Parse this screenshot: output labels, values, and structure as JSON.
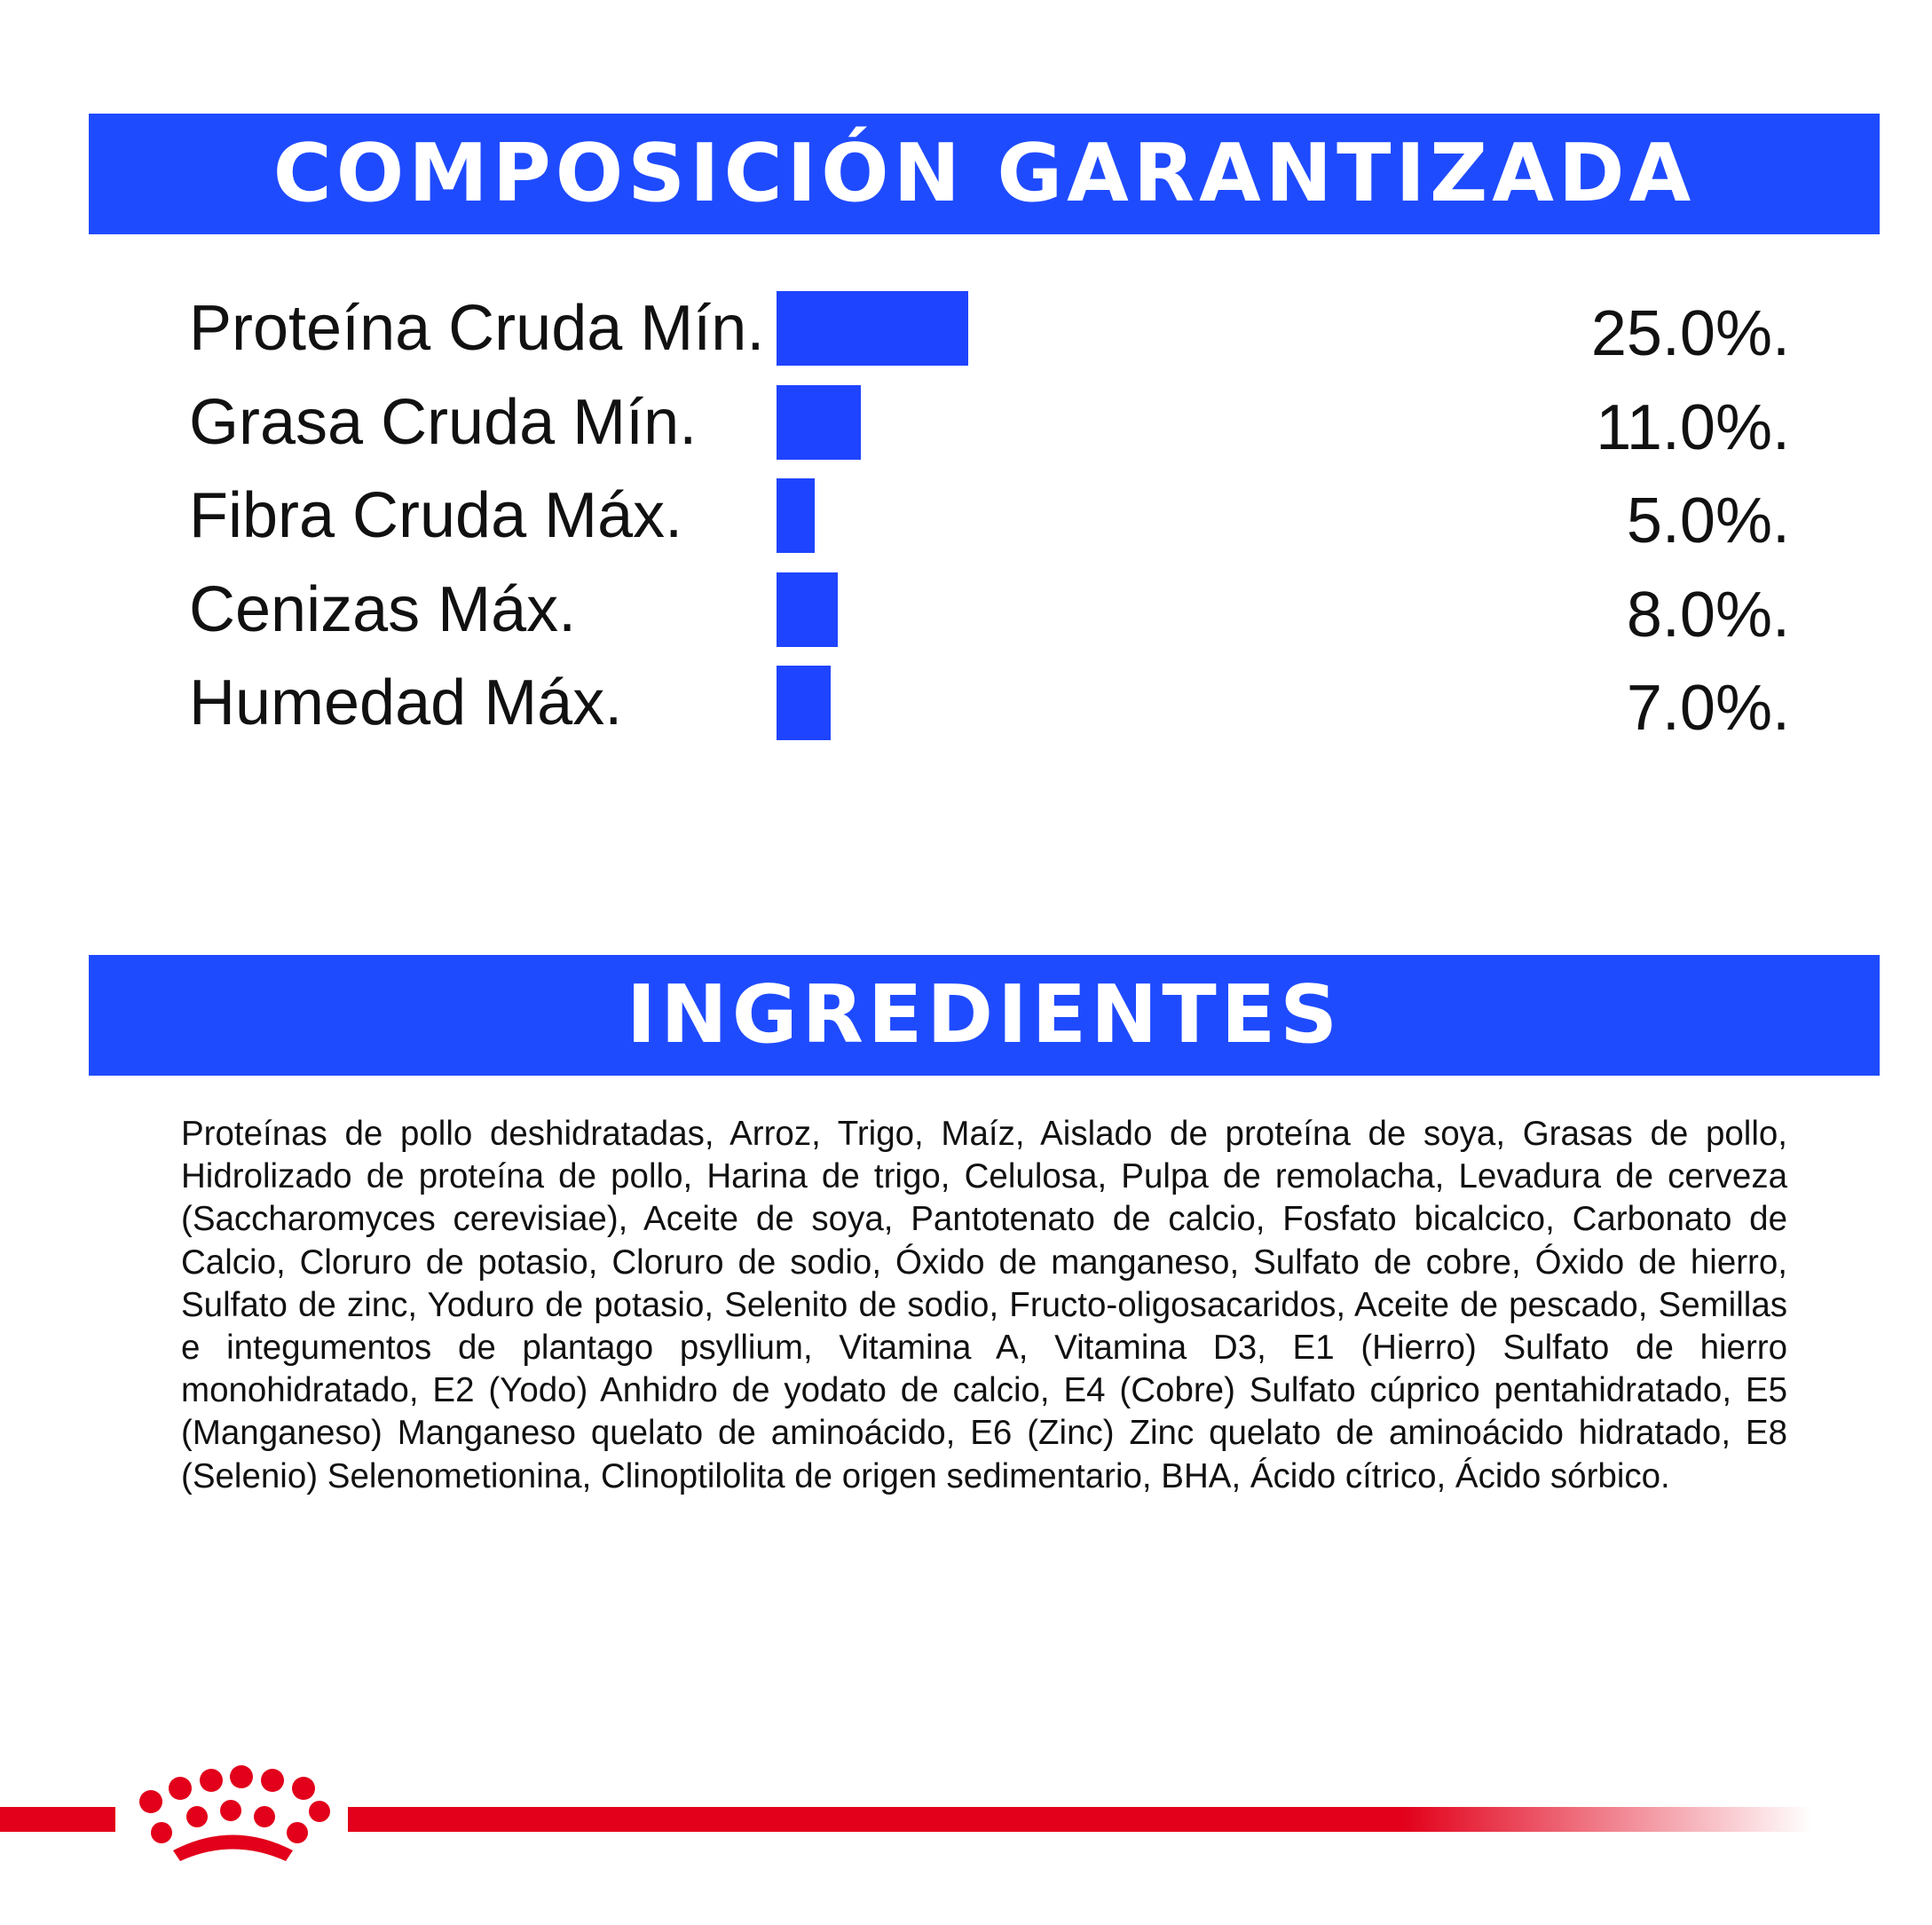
{
  "colors": {
    "banner_blue": "#1f4bff",
    "bar_blue": "#1f44ff",
    "brand_red": "#e2001a"
  },
  "composition": {
    "title": "COMPOSICIÓN GARANTIZADA",
    "rows": [
      {
        "label": "Proteína Cruda Mín.",
        "value": "25.0%.",
        "percent": 25.0
      },
      {
        "label": "Grasa Cruda Mín.",
        "value": "11.0%.",
        "percent": 11.0
      },
      {
        "label": "Fibra Cruda Máx.",
        "value": "5.0%.",
        "percent": 5.0
      },
      {
        "label": "Cenizas Máx.",
        "value": "8.0%.",
        "percent": 8.0
      },
      {
        "label": "Humedad Máx.",
        "value": "7.0%.",
        "percent": 7.0
      }
    ]
  },
  "ingredients": {
    "title": "INGREDIENTES",
    "text": "Proteínas de pollo deshidratadas, Arroz, Trigo, Maíz, Aislado de proteína de soya, Grasas de pollo, Hidrolizado de proteína de pollo, Harina de trigo, Celulosa, Pulpa de remolacha, Levadura de cerveza (Saccharomyces cerevisiae), Aceite de soya, Pantotenato de calcio, Fosfato bicalcico, Carbonato de Calcio, Cloruro de potasio, Cloruro de sodio, Óxido de manganeso, Sulfato de cobre, Óxido de hierro, Sulfato de zinc, Yoduro de potasio, Selenito de sodio, Fructo-oligosacaridos, Aceite de pescado, Semillas e integumentos de plantago psyllium, Vitamina A, Vitamina D3, E1 (Hierro) Sulfato de hierro monohidratado, E2 (Yodo) Anhidro de yodato de calcio, E4 (Cobre) Sulfato cúprico pentahidratado, E5 (Manganeso) Manganeso quelato de aminoácido, E6 (Zinc) Zinc quelato de aminoácido hidratado, E8 (Selenio) Selenometionina, Clinoptilolita de origen sedimentario, BHA, Ácido cítrico, Ácido sórbico."
  },
  "footer": {
    "logo_icon": "crown-icon"
  }
}
